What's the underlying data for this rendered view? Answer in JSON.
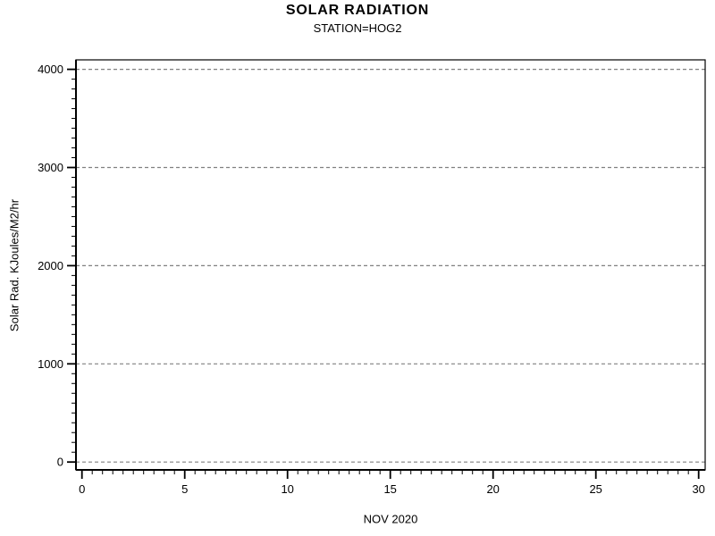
{
  "chart_data": {
    "type": "line",
    "title": "SOLAR RADIATION",
    "subtitle": "STATION=HOG2",
    "xlabel": "NOV 2020",
    "ylabel": "Solar Rad. KJoules/M2/hr",
    "xlim": [
      0,
      30
    ],
    "ylim": [
      0,
      4000
    ],
    "x_ticks": [
      0,
      5,
      10,
      15,
      20,
      25,
      30
    ],
    "y_ticks": [
      0,
      1000,
      2000,
      3000,
      4000
    ],
    "x_minor_divisions": 10,
    "y_minor_divisions": 10,
    "grid": "horizontal dashed lines at each y major tick",
    "grid_color": "#808080",
    "axis_color": "#000000",
    "background_color": "#ffffff",
    "legend": "none",
    "series": []
  }
}
